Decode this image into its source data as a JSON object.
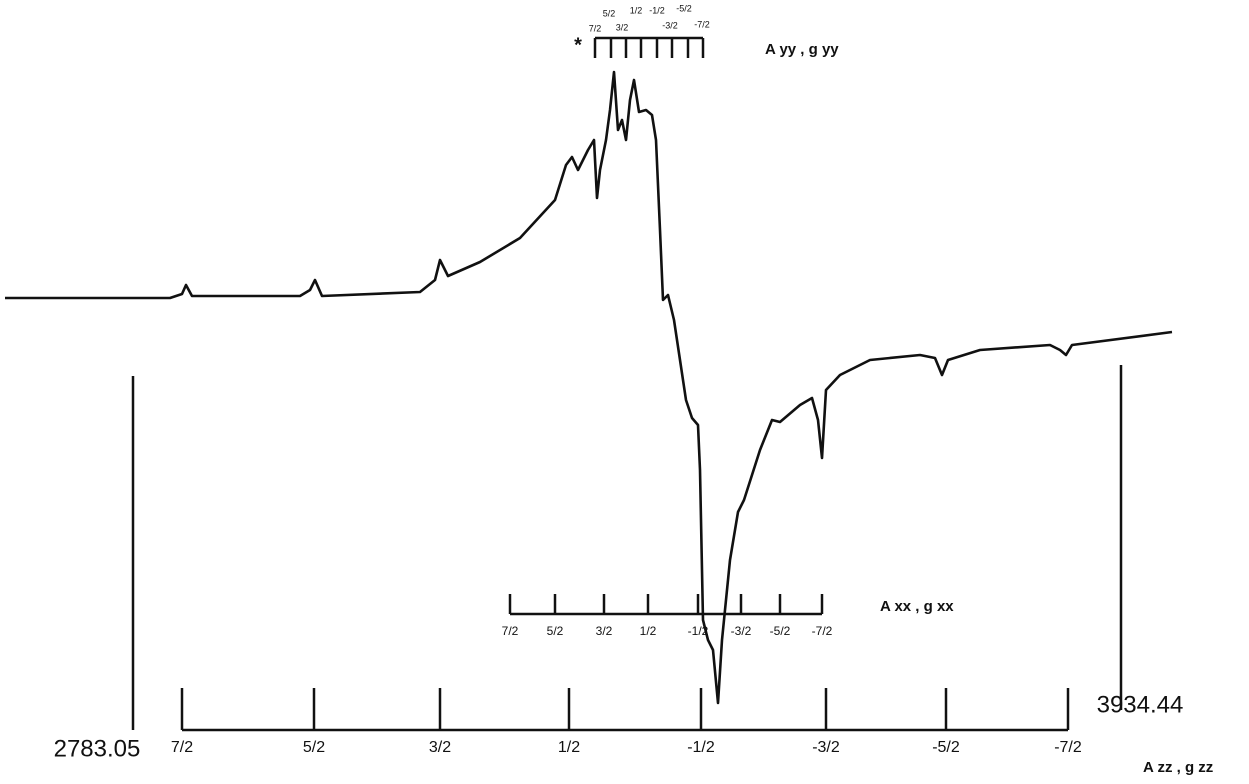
{
  "field_start": 2783.05,
  "field_end": 3934.44,
  "m_i": [
    "7/2",
    "5/2",
    "3/2",
    "1/2",
    "-1/2",
    "-3/2",
    "-5/2",
    "-7/2"
  ],
  "asterisk": "*",
  "label_yy": "A yy , g yy",
  "label_xx": "A xx , g xx",
  "label_zz": "A zz , g zz"
}
